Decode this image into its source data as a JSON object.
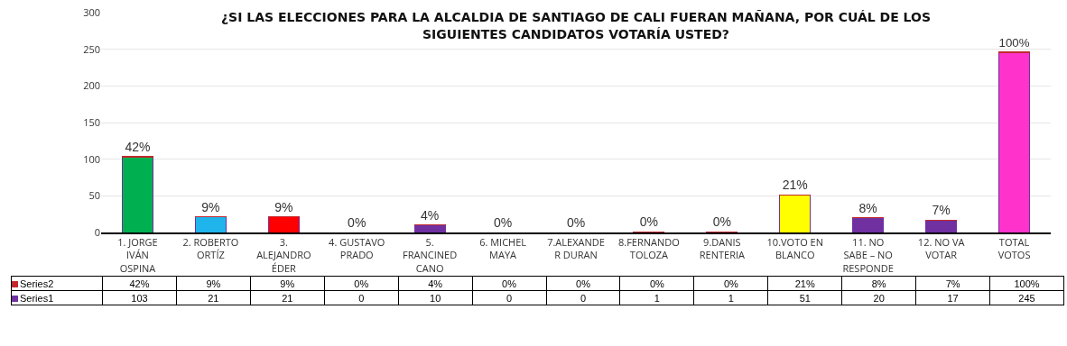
{
  "chart_data": {
    "type": "bar",
    "stacked": true,
    "title": "¿SI LAS ELECCIONES PARA LA ALCALDIA DE SANTIAGO DE CALI FUERAN MAÑANA, POR CUÁL DE LOS SIGUIENTES CANDIDATOS VOTARÍA USTED?",
    "categories": [
      "1. JORGE IVÁN OSPINA",
      "2. ROBERTO ORTÍZ",
      "3. ALEJANDRO ÉDER",
      "4. GUSTAVO PRADO",
      "5. FRANCINED CANO",
      "6. MICHEL MAYA",
      "7.ALEXANDER DURAN",
      "8.FERNANDO TOLOZA",
      "9.DANIS RENTERIA",
      "10.VOTO EN BLANCO",
      "11. NO SABE – NO RESPONDE",
      "12. NO VA VOTAR",
      "TOTAL VOTOS"
    ],
    "series": [
      {
        "name": "Series1",
        "color": "#7030a0",
        "colors": [
          "#00b050",
          "#1fb4ec",
          "#ff0000",
          "#7030a0",
          "#7030a0",
          "#7030a0",
          "#7030a0",
          "#7030a0",
          "#7030a0",
          "#ffff00",
          "#7030a0",
          "#7030a0",
          "#ff33cc"
        ],
        "values": [
          103,
          21,
          21,
          0,
          10,
          0,
          0,
          1,
          1,
          51,
          20,
          17,
          245
        ],
        "value_labels": [
          "103",
          "21",
          "21",
          "0",
          "10",
          "0",
          "0",
          "1",
          "1",
          "51",
          "20",
          "17",
          "245"
        ]
      },
      {
        "name": "Series2",
        "color": "#c0282d",
        "values": [
          0.42,
          0.09,
          0.09,
          0,
          0.04,
          0,
          0,
          0,
          0,
          0.21,
          0.08,
          0.07,
          1
        ],
        "value_labels": [
          "42%",
          "9%",
          "9%",
          "0%",
          "4%",
          "0%",
          "0%",
          "0%",
          "0%",
          "21%",
          "8%",
          "7%",
          "100%"
        ]
      }
    ],
    "ylim": [
      0,
      300
    ],
    "yticks": [
      0,
      50,
      100,
      150,
      200,
      250,
      300
    ],
    "grid": "y",
    "legend": "bottom left"
  }
}
